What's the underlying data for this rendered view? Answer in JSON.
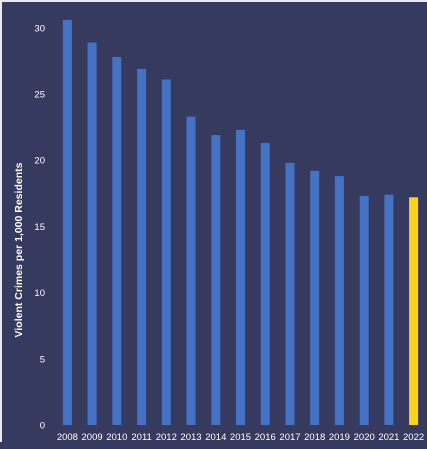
{
  "chart_data": {
    "type": "bar",
    "title": "",
    "xlabel": "",
    "ylabel": "Violent Crimes per 1,000 Residents",
    "categories": [
      "2008",
      "2009",
      "2010",
      "2011",
      "2012",
      "2013",
      "2014",
      "2015",
      "2016",
      "2017",
      "2018",
      "2019",
      "2020",
      "2021",
      "2022"
    ],
    "values": [
      30.6,
      28.9,
      27.8,
      26.9,
      26.1,
      23.3,
      21.9,
      22.3,
      21.3,
      19.8,
      19.2,
      18.8,
      17.3,
      17.4,
      17.2
    ],
    "ylim": [
      0,
      31.5
    ],
    "yticks": [
      0,
      5,
      10,
      15,
      20,
      25,
      30
    ],
    "grid": false,
    "legend": "none",
    "bar_color": "#4472c4",
    "highlight_color": "#ffd21a",
    "highlight_index": 14,
    "background": "#353a5e"
  }
}
